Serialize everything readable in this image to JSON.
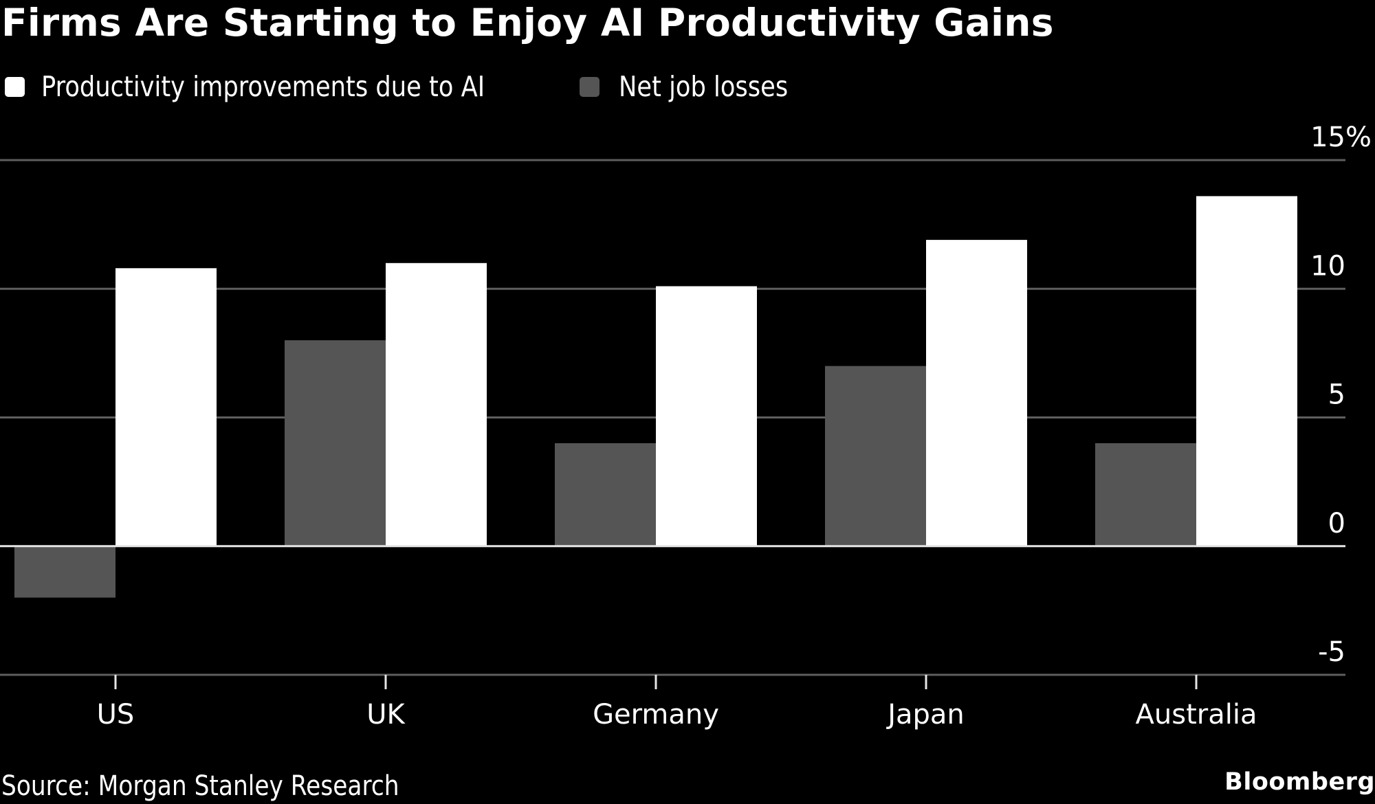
{
  "header": {
    "title": "Firms Are Starting to Enjoy AI Productivity Gains"
  },
  "legend": {
    "items": [
      {
        "label": "Productivity improvements due to AI",
        "color": "#ffffff"
      },
      {
        "label": "Net job losses",
        "color": "#555555"
      }
    ]
  },
  "footer": {
    "source": "Source: Morgan Stanley Research",
    "brand": "Bloomberg"
  },
  "chart_data": {
    "type": "bar",
    "title": "Firms Are Starting to Enjoy AI Productivity Gains",
    "xlabel": "",
    "ylabel": "",
    "categories": [
      "US",
      "UK",
      "Germany",
      "Japan",
      "Australia"
    ],
    "series": [
      {
        "name": "Net job losses",
        "color": "#555555",
        "values": [
          -2.0,
          8.0,
          4.0,
          7.0,
          4.0
        ]
      },
      {
        "name": "Productivity improvements due to AI",
        "color": "#ffffff",
        "values": [
          10.8,
          11.0,
          10.1,
          11.9,
          13.6
        ]
      }
    ],
    "ylim": [
      -5,
      15
    ],
    "yticks": [
      15,
      10,
      5,
      0,
      -5
    ],
    "ytick_labels": [
      "15%",
      "10",
      "5",
      "0",
      "-5"
    ],
    "y_axis_side": "right",
    "grid": true,
    "legend_position": "top-left",
    "source": "Source: Morgan Stanley Research"
  }
}
